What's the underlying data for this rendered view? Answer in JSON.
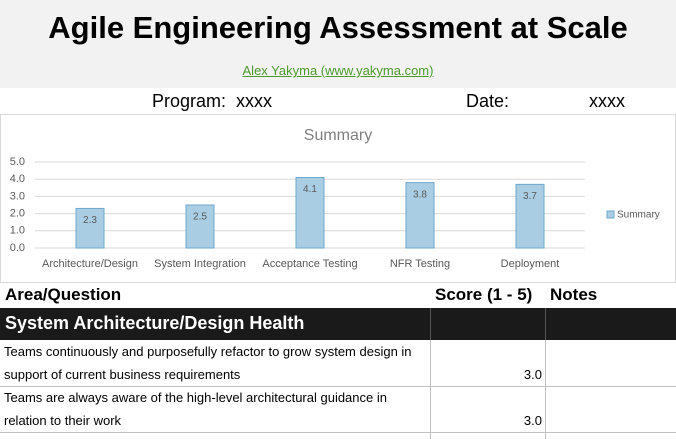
{
  "header": {
    "title": "Agile Engineering Assessment at Scale",
    "link": "Alex Yakyma (www.yakyma.com)"
  },
  "meta": {
    "program_label": "Program:",
    "program_value": "xxxx",
    "date_label": "Date:",
    "date_value": "xxxx"
  },
  "chart_data": {
    "type": "bar",
    "title": "Summary",
    "categories": [
      "Architecture/Design",
      "System Integration",
      "Acceptance Testing",
      "NFR Testing",
      "Deployment"
    ],
    "series": [
      {
        "name": "Summary",
        "color": "#a9cde3",
        "values": [
          2.3,
          2.5,
          4.1,
          3.8,
          3.7
        ]
      }
    ],
    "ylim": [
      0,
      5
    ],
    "yticks": [
      {
        "value": 0,
        "label": "0.0"
      },
      {
        "value": 1,
        "label": "1.0"
      },
      {
        "value": 2,
        "label": "2.0"
      },
      {
        "value": 3,
        "label": "3.0"
      },
      {
        "value": 4,
        "label": "4.0"
      },
      {
        "value": 5,
        "label": "5.0"
      }
    ],
    "grid": true,
    "legend": "right"
  },
  "table": {
    "headers": [
      "Area/Question",
      "Score (1 - 5)",
      "Notes"
    ],
    "section": "System Architecture/Design Health",
    "rows": [
      [
        "Teams continuously and purposefully refactor to grow system design in support of current business requirements",
        "3.0",
        ""
      ],
      [
        "Teams are always aware of the high-level architectural guidance in relation to their work",
        "3.0",
        ""
      ]
    ]
  }
}
